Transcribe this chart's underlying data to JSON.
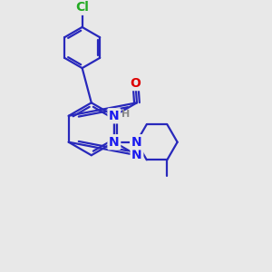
{
  "bg_color": "#e8e8e8",
  "bond_color": "#2828bb",
  "bond_width": 1.6,
  "atom_colors": {
    "N": "#1a1aee",
    "O": "#dd0000",
    "Cl": "#22aa22",
    "H_label": "#888888"
  },
  "font_size": 9,
  "fig_size": [
    3.0,
    3.0
  ],
  "dpi": 100
}
